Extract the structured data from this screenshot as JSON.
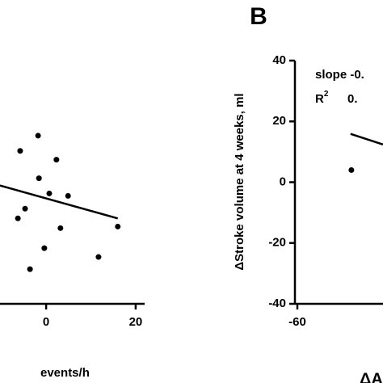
{
  "chart_data": [
    {
      "type": "scatter",
      "x_label": "events/h",
      "xlim": [
        -10.3,
        22
      ],
      "xticks": [
        0,
        20
      ],
      "ylim": [
        -40,
        40
      ],
      "series": [
        {
          "color": "#000000",
          "x": [
            -1.8,
            -5.8,
            2.3,
            -1.6,
            0.7,
            4.9,
            -4.7,
            -6.3,
            3.2,
            -0.4,
            -3.6,
            11.7,
            16.0
          ],
          "y": [
            15.3,
            10.3,
            7.4,
            1.3,
            -3.7,
            -4.5,
            -8.7,
            -11.9,
            -15.1,
            -21.7,
            -28.6,
            -24.6,
            -14.6
          ]
        }
      ],
      "fit": {
        "x": [
          -10.3,
          16.0
        ],
        "y": [
          -1.1,
          -11.9
        ]
      }
    },
    {
      "type": "scatter",
      "panel_label": "B",
      "y_label": "ΔStroke volume at 4 weeks, ml",
      "x_label": "ΔA",
      "annotations": [
        "slope -0.",
        "R",
        "2",
        "0."
      ],
      "xlim": [
        -60,
        -40
      ],
      "xticks": [
        -60
      ],
      "ylim": [
        -40,
        40
      ],
      "yticks": [
        40,
        20,
        0,
        -20,
        -40
      ],
      "series": [
        {
          "color": "#000000",
          "x": [
            -47.5
          ],
          "y": [
            4.0
          ]
        }
      ],
      "fit": {
        "x": [
          -47.7,
          -40.2
        ],
        "y": [
          15.9,
          12.4
        ]
      }
    }
  ]
}
